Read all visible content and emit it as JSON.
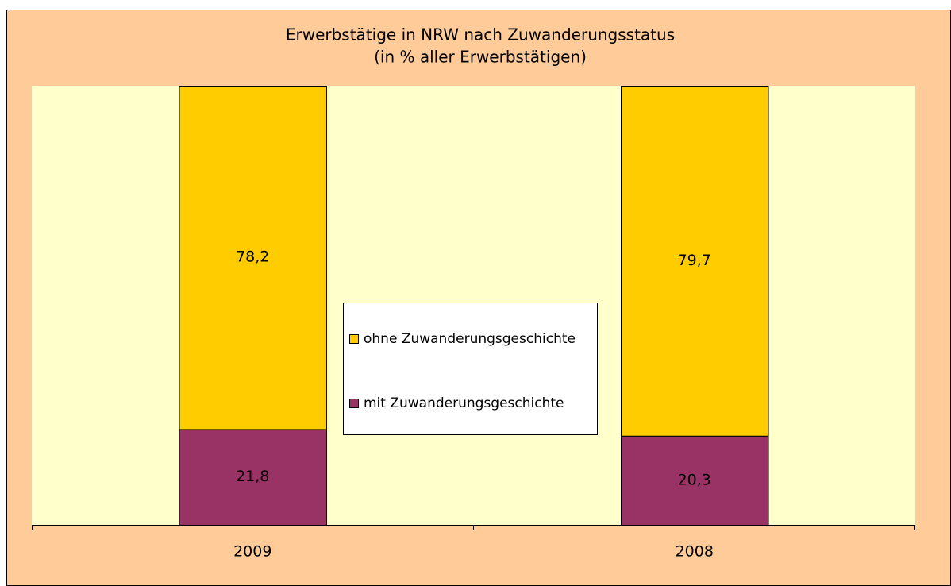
{
  "chart_data": {
    "type": "stacked_bar",
    "title": "Erwerbstätige in NRW nach Zuwanderungsstatus",
    "subtitle": "(in % aller Erwerbstätigen)",
    "categories": [
      "2009",
      "2008"
    ],
    "series": [
      {
        "name": "mit Zuwanderungsgeschichte",
        "color": "#993366",
        "values": [
          21.8,
          20.3
        ],
        "value_labels": [
          "21,8",
          "20,3"
        ]
      },
      {
        "name": "ohne Zuwanderungsgeschichte",
        "color": "#FFCC00",
        "values": [
          78.2,
          79.7
        ],
        "value_labels": [
          "78,2",
          "79,7"
        ]
      }
    ],
    "ylim": [
      0,
      100
    ],
    "legend": "center"
  }
}
